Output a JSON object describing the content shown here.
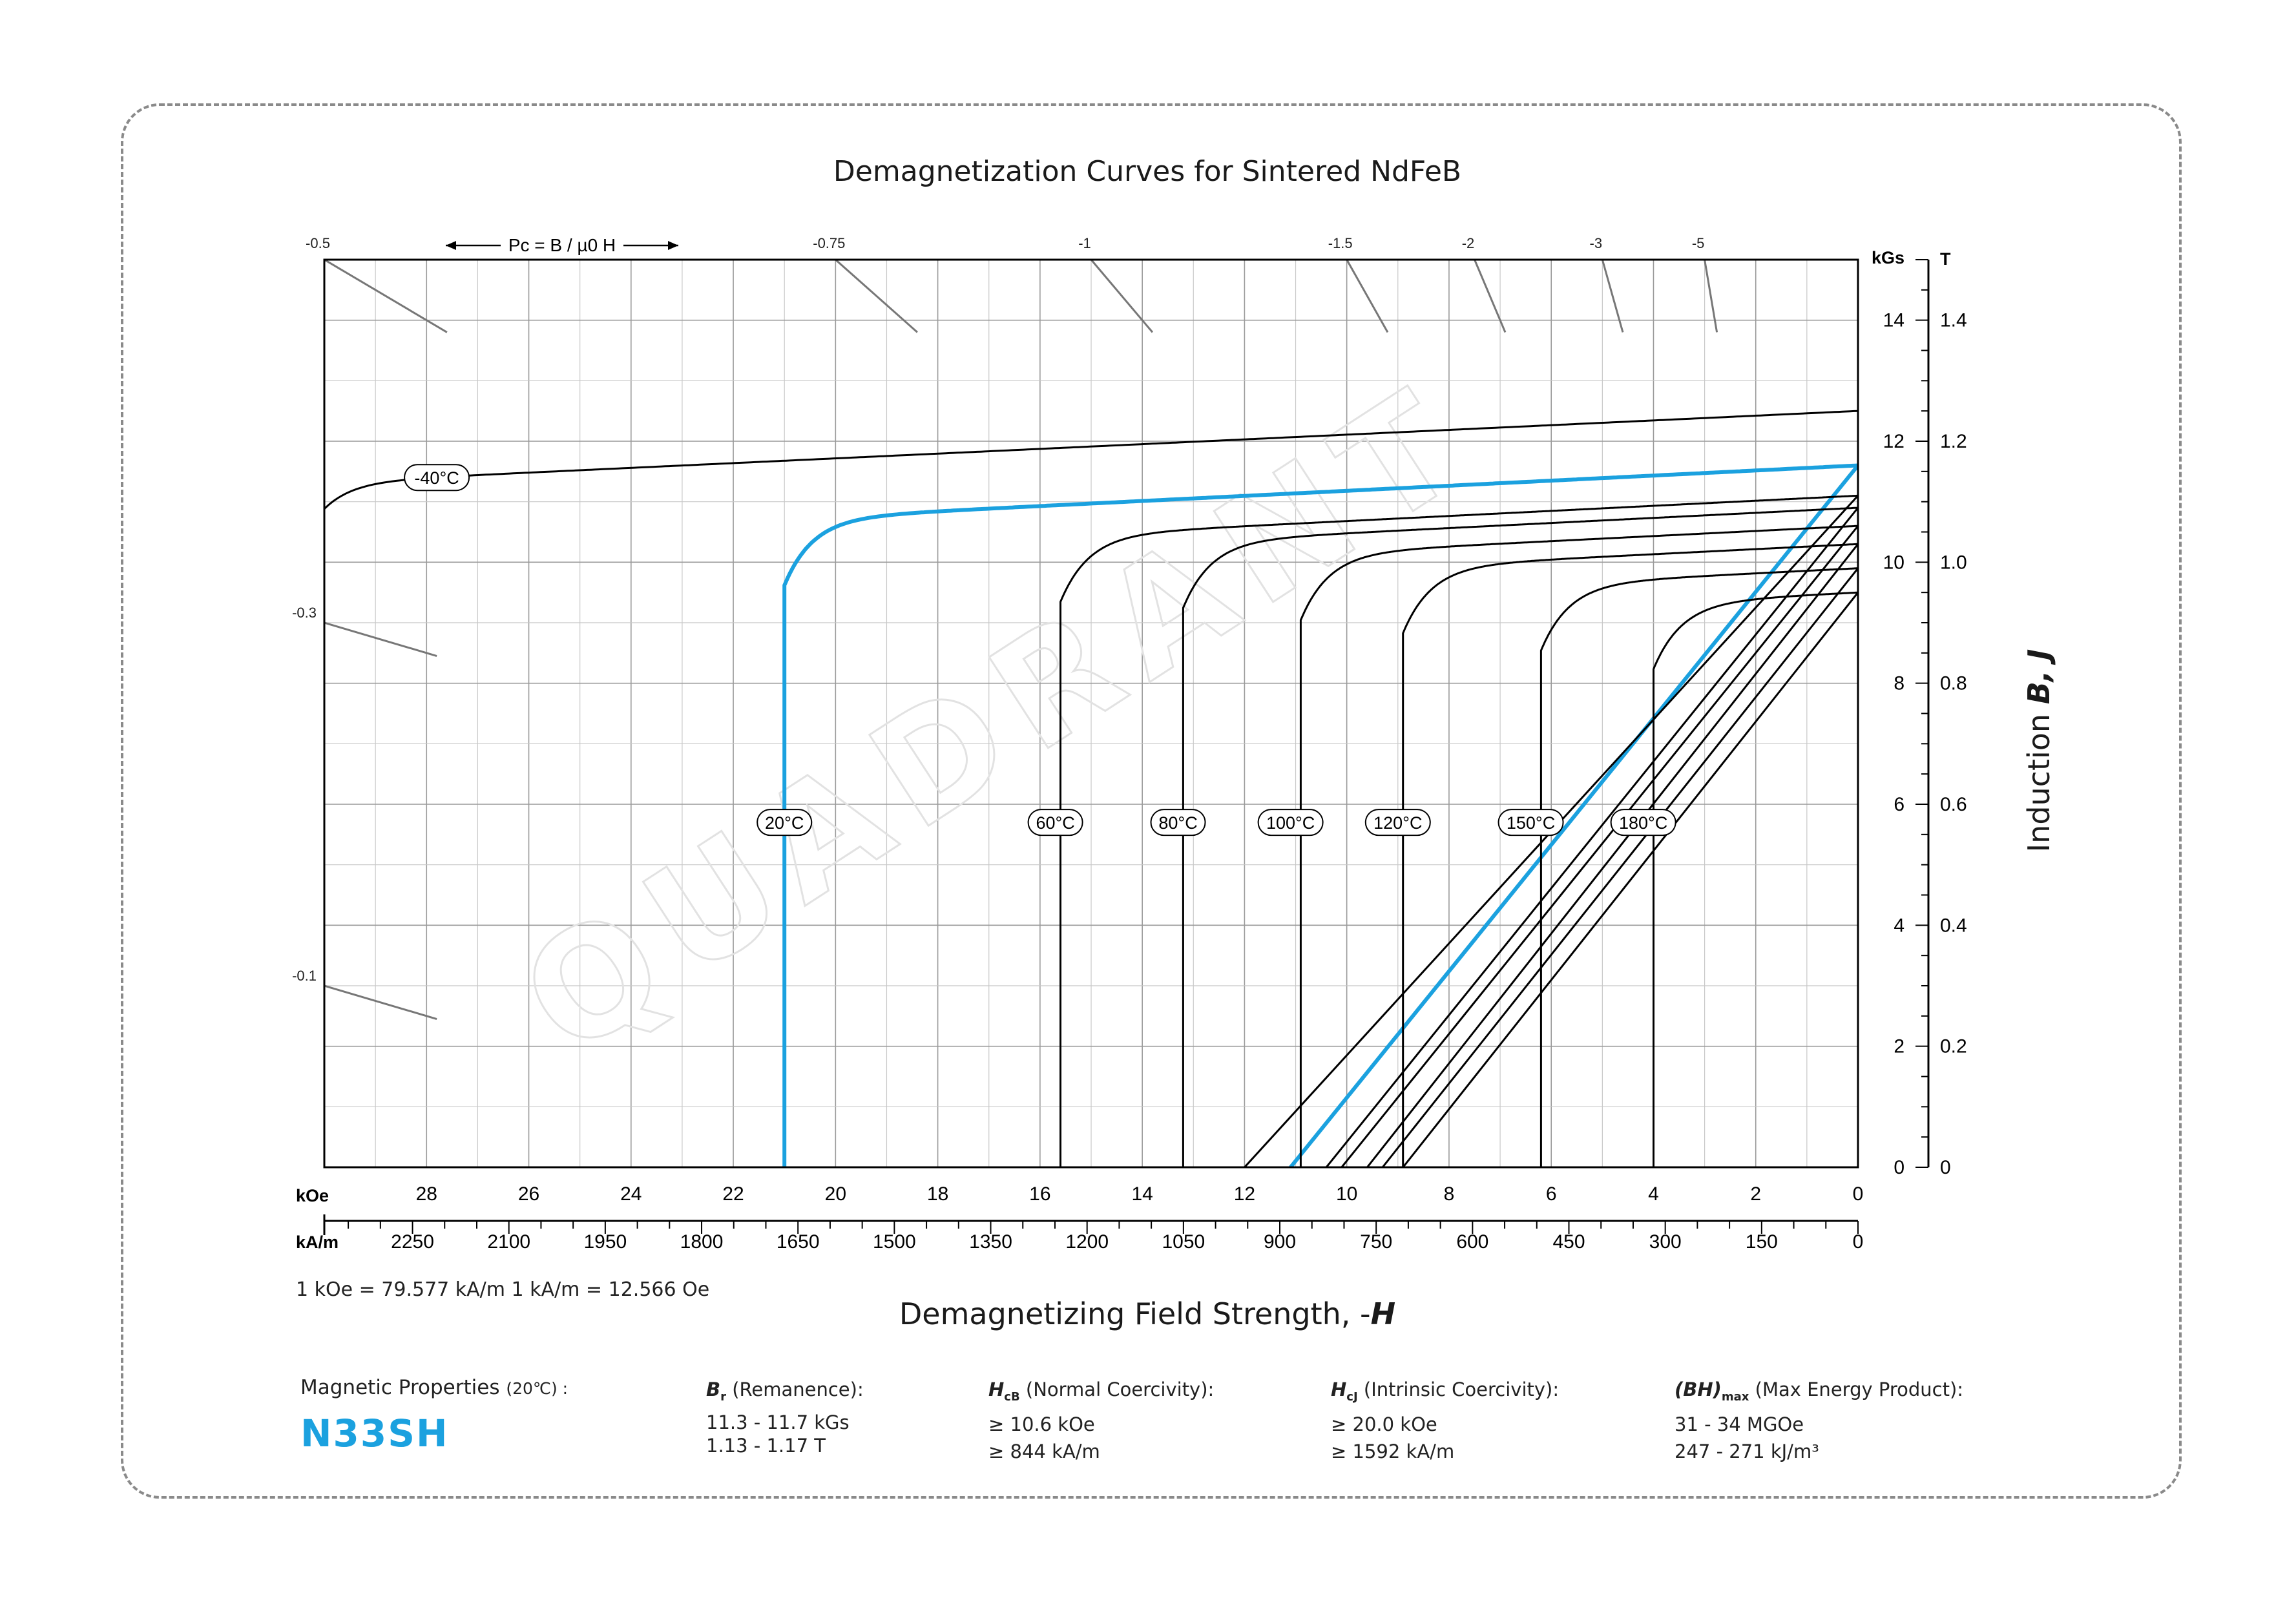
{
  "chart_data": {
    "type": "line",
    "title": "Demagnetization Curves for Sintered NdFeB",
    "xlabel": "Demagnetizing Field Strength, -H",
    "ylabel": "Induction B, J",
    "x_unit_primary": "kOe",
    "x_unit_secondary": "kA/m",
    "y_unit_primary": "kGs",
    "y_unit_secondary": "T",
    "xlim": [
      30,
      0
    ],
    "ylim": [
      0,
      15
    ],
    "grid": true,
    "x_ticks_koe": [
      "28",
      "26",
      "24",
      "22",
      "20",
      "18",
      "16",
      "14",
      "12",
      "10",
      "8",
      "6",
      "4",
      "2",
      "0"
    ],
    "x_ticks_kam": [
      "2250",
      "2100",
      "1950",
      "1800",
      "1650",
      "1500",
      "1350",
      "1200",
      "1050",
      "900",
      "750",
      "600",
      "450",
      "300",
      "150",
      "0"
    ],
    "y_ticks_kgs": [
      "0",
      "2",
      "4",
      "6",
      "8",
      "10",
      "12",
      "14"
    ],
    "y_ticks_t": [
      "0",
      "0.2",
      "0.4",
      "0.6",
      "0.8",
      "1.0",
      "1.2",
      "1.4"
    ],
    "conversion_note": "1 kOe = 79.577 kA/m   1 kA/m = 12.566 Oe",
    "pc_label": "Pc = B / µ0 H",
    "pc_values": [
      {
        "label": "-0.5",
        "edge": "top",
        "value": 0.5
      },
      {
        "label": "-0.75",
        "edge": "top",
        "value": 0.75
      },
      {
        "label": "-1",
        "edge": "top",
        "value": 1
      },
      {
        "label": "-1.5",
        "edge": "top",
        "value": 1.5
      },
      {
        "label": "-2",
        "edge": "top",
        "value": 2
      },
      {
        "label": "-3",
        "edge": "top",
        "value": 3
      },
      {
        "label": "-5",
        "edge": "top",
        "value": 5
      },
      {
        "label": "-0.3",
        "edge": "left",
        "value": 0.3
      },
      {
        "label": "-0.1",
        "edge": "left",
        "value": 0.1
      }
    ],
    "watermark": "QUADRANT",
    "series": [
      {
        "name": "-40°C",
        "color": "#000000",
        "Br": 12.5,
        "Hcj": 30.5,
        "Hc_line": null,
        "label_at": [
          27.8,
          11.4
        ]
      },
      {
        "name": "20°C",
        "color": "#1ba1df",
        "Br": 11.6,
        "Hcj": 21.0,
        "Hc_line": 11.1,
        "label_at": [
          21.0,
          5.7
        ]
      },
      {
        "name": "60°C",
        "color": "#000000",
        "Br": 11.1,
        "Hcj": 15.6,
        "Hc_line": 12.0,
        "label_at": [
          15.7,
          5.7
        ]
      },
      {
        "name": "80°C",
        "color": "#000000",
        "Br": 10.9,
        "Hcj": 13.2,
        "Hc_line": 10.4,
        "label_at": [
          13.3,
          5.7
        ]
      },
      {
        "name": "100°C",
        "color": "#000000",
        "Br": 10.6,
        "Hcj": 10.9,
        "Hc_line": 10.1,
        "label_at": [
          11.1,
          5.7
        ]
      },
      {
        "name": "120°C",
        "color": "#000000",
        "Br": 10.3,
        "Hcj": 8.9,
        "Hc_line": 9.6,
        "label_at": [
          9.0,
          5.7
        ]
      },
      {
        "name": "150°C",
        "color": "#000000",
        "Br": 9.9,
        "Hcj": 6.2,
        "Hc_line": 9.3,
        "label_at": [
          6.4,
          5.7
        ]
      },
      {
        "name": "180°C",
        "color": "#000000",
        "Br": 9.5,
        "Hcj": 4.0,
        "Hc_line": 8.9,
        "label_at": [
          4.2,
          5.7
        ]
      }
    ]
  },
  "properties": {
    "heading": "Magnetic Properties",
    "heading_temp": "(20℃) :",
    "grade": "N33SH",
    "br": {
      "symbol": "B",
      "sub": "r",
      "name": "(Remanence):",
      "line1": "11.3 - 11.7 kGs",
      "line2": "1.13 - 1.17 T"
    },
    "hcb": {
      "symbol": "H",
      "sub": "cB",
      "name": "(Normal Coercivity):",
      "line1": "≥ 10.6 kOe",
      "line2": "≥ 844 kA/m"
    },
    "hcj": {
      "symbol": "H",
      "sub": "cJ",
      "name": "(Intrinsic Coercivity):",
      "line1": "≥ 20.0 kOe",
      "line2": "≥ 1592 kA/m"
    },
    "bh": {
      "symbol": "(BH)",
      "sub": "max",
      "name": "(Max Energy Product):",
      "line1": "31 - 34 MGOe",
      "line2": "247 - 271 kJ/m³"
    }
  }
}
